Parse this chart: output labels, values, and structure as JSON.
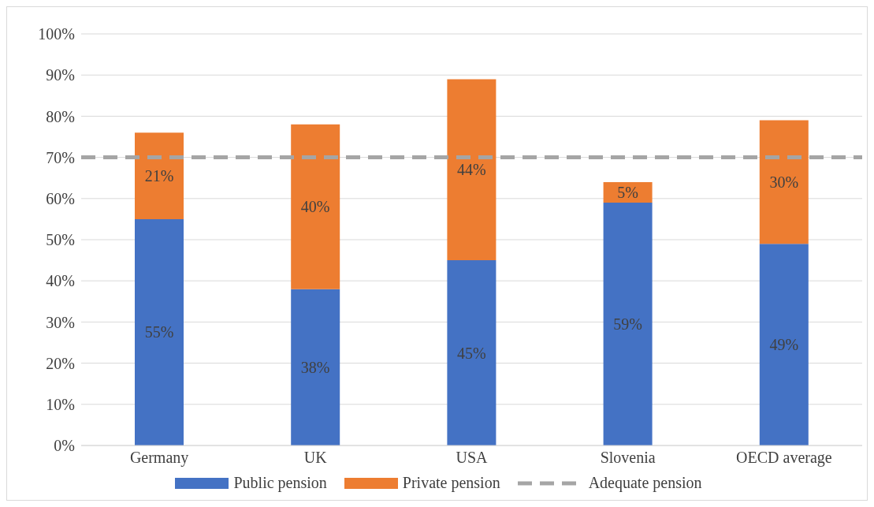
{
  "chart_data": {
    "type": "bar",
    "stacked": true,
    "categories": [
      "Germany",
      "UK",
      "USA",
      "Slovenia",
      "OECD average"
    ],
    "series": [
      {
        "name": "Public pension",
        "color": "#4472c4",
        "values": [
          55,
          38,
          45,
          59,
          49
        ],
        "value_labels": [
          "55%",
          "38%",
          "45%",
          "59%",
          "49%"
        ]
      },
      {
        "name": "Private pension",
        "color": "#ed7d31",
        "values": [
          21,
          40,
          44,
          5,
          30
        ],
        "value_labels": [
          "21%",
          "40%",
          "44%",
          "5%",
          "30%"
        ]
      }
    ],
    "ref_lines": [
      {
        "axis": "y",
        "value": 70,
        "label": "Adequate pension",
        "color": "#a5a5a5",
        "line_style": "dashed"
      }
    ],
    "ylim": [
      0,
      100
    ],
    "yticks": [
      {
        "value": 0,
        "label": "0%"
      },
      {
        "value": 10,
        "label": "10%"
      },
      {
        "value": 20,
        "label": "20%"
      },
      {
        "value": 30,
        "label": "30%"
      },
      {
        "value": 40,
        "label": "40%"
      },
      {
        "value": 50,
        "label": "50%"
      },
      {
        "value": 60,
        "label": "60%"
      },
      {
        "value": 70,
        "label": "70%"
      },
      {
        "value": 80,
        "label": "80%"
      },
      {
        "value": 90,
        "label": "90%"
      },
      {
        "value": 100,
        "label": "100%"
      }
    ],
    "grid": "y",
    "legend": "bottom"
  }
}
